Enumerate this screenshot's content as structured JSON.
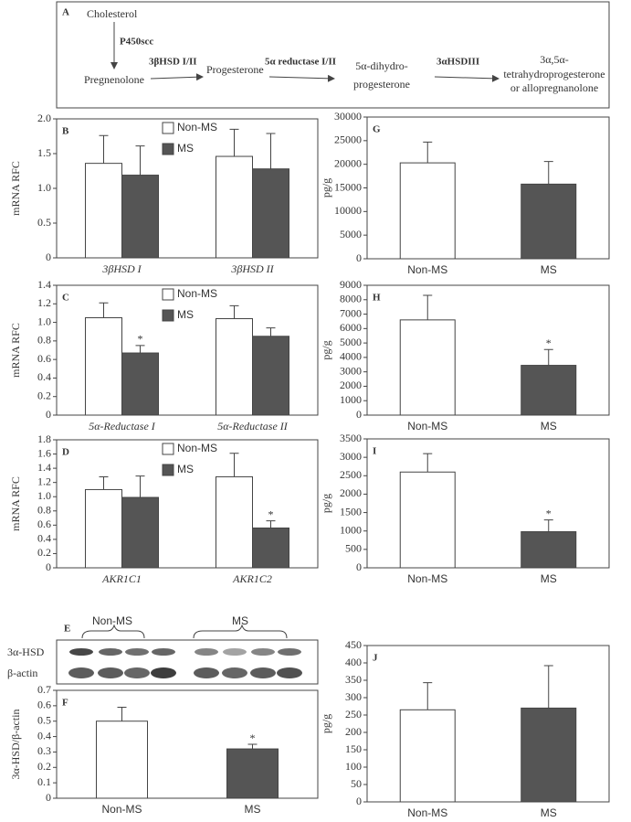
{
  "pathway": {
    "label": "A",
    "nodes": [
      [
        "Cholesterol"
      ],
      [
        "Pregnenolone"
      ],
      [
        "Progesterone"
      ],
      [
        "5α-dihydro-",
        "progesterone"
      ],
      [
        "3α,5α-",
        "tetrahydroprogesterone",
        "or allopregnanolone"
      ]
    ],
    "enzymes": [
      "P450scc",
      "3βHSD I/II",
      "5α reductase I/II",
      "3αHSDIII"
    ]
  },
  "blot": {
    "label": "E",
    "groups": [
      "Non-MS",
      "MS"
    ],
    "rows": [
      "3α-HSD",
      "β-actin"
    ]
  },
  "chart_data": [
    {
      "type": "bar",
      "label": "B",
      "ylabel": "mRNA RFC",
      "categories": [
        "3βHSD I",
        "3βHSD II"
      ],
      "series": [
        {
          "name": "Non-MS",
          "color": "#ffffff",
          "values": [
            1.36,
            1.46
          ],
          "errors": [
            0.4,
            0.39
          ]
        },
        {
          "name": "MS",
          "color": "#555555",
          "values": [
            1.19,
            1.28
          ],
          "errors": [
            0.42,
            0.51
          ]
        }
      ],
      "ylim": [
        0,
        2
      ],
      "yticks": [
        0,
        0.5,
        {
          "value": 1,
          "label": "1.0"
        },
        1.5,
        {
          "value": 2,
          "label": "2.0"
        }
      ],
      "grid": false,
      "legend": "top"
    },
    {
      "type": "bar",
      "label": "C",
      "ylabel": "mRNA RFC",
      "categories": [
        "5α-Reductase I",
        "5α-Reductase II"
      ],
      "series": [
        {
          "name": "Non-MS",
          "color": "#ffffff",
          "values": [
            1.05,
            1.04
          ],
          "errors": [
            0.16,
            0.14
          ]
        },
        {
          "name": "MS",
          "color": "#555555",
          "values": [
            0.67,
            0.85
          ],
          "errors": [
            0.08,
            0.09
          ],
          "significance": [
            "*",
            null
          ]
        }
      ],
      "ylim": [
        0,
        1.4
      ],
      "yticks": [
        0,
        0.2,
        0.4,
        0.6,
        0.8,
        {
          "value": 1,
          "label": "1.0"
        },
        1.2,
        1.4
      ],
      "grid": false,
      "legend": "top"
    },
    {
      "type": "bar",
      "label": "D",
      "ylabel": "mRNA RFC",
      "categories": [
        "AKR1C1",
        "AKR1C2"
      ],
      "series": [
        {
          "name": "Non-MS",
          "color": "#ffffff",
          "values": [
            1.1,
            1.28
          ],
          "errors": [
            0.18,
            0.33
          ]
        },
        {
          "name": "MS",
          "color": "#555555",
          "values": [
            0.99,
            0.56
          ],
          "errors": [
            0.3,
            0.1
          ],
          "significance": [
            null,
            "*"
          ]
        }
      ],
      "ylim": [
        0,
        1.8
      ],
      "yticks": [
        0,
        0.2,
        0.4,
        0.6,
        0.8,
        {
          "value": 1,
          "label": "1.0"
        },
        1.2,
        1.4,
        1.6,
        1.8
      ],
      "grid": false,
      "legend": "top"
    },
    {
      "type": "bar",
      "label": "F",
      "ylabel": "3α-HSD/β-actin",
      "categories": [
        "Non-MS",
        "MS"
      ],
      "values": [
        0.5,
        0.32
      ],
      "errors": [
        0.09,
        0.03
      ],
      "colors": [
        "#ffffff",
        "#555555"
      ],
      "significance": [
        null,
        "*"
      ],
      "ylim": [
        0,
        0.7
      ],
      "yticks": [
        0,
        0.1,
        0.2,
        0.3,
        0.4,
        0.5,
        0.6,
        0.7
      ],
      "grid": false
    },
    {
      "type": "bar",
      "label": "G",
      "ylabel": "pg/g",
      "categories": [
        "Non-MS",
        "MS"
      ],
      "values": [
        20300,
        15800
      ],
      "errors": [
        4400,
        4800
      ],
      "colors": [
        "#ffffff",
        "#555555"
      ],
      "ylim": [
        0,
        30000
      ],
      "yticks": [
        0,
        5000,
        10000,
        15000,
        20000,
        25000,
        30000
      ],
      "grid": false
    },
    {
      "type": "bar",
      "label": "H",
      "ylabel": "pg/g",
      "categories": [
        "Non-MS",
        "MS"
      ],
      "values": [
        6600,
        3450
      ],
      "errors": [
        1700,
        1100
      ],
      "colors": [
        "#ffffff",
        "#555555"
      ],
      "significance": [
        null,
        "*"
      ],
      "ylim": [
        0,
        9000
      ],
      "yticks": [
        0,
        1000,
        2000,
        3000,
        4000,
        5000,
        6000,
        7000,
        8000,
        9000
      ],
      "grid": false
    },
    {
      "type": "bar",
      "label": "I",
      "ylabel": "pg/g",
      "categories": [
        "Non-MS",
        "MS"
      ],
      "values": [
        2600,
        980
      ],
      "errors": [
        500,
        320
      ],
      "colors": [
        "#ffffff",
        "#555555"
      ],
      "significance": [
        null,
        "*"
      ],
      "ylim": [
        0,
        3500
      ],
      "yticks": [
        0,
        500,
        1000,
        1500,
        2000,
        2500,
        3000,
        3500
      ],
      "grid": false
    },
    {
      "type": "bar",
      "label": "J",
      "ylabel": "pg/g",
      "categories": [
        "Non-MS",
        "MS"
      ],
      "values": [
        265,
        270
      ],
      "errors": [
        78,
        122
      ],
      "colors": [
        "#ffffff",
        "#555555"
      ],
      "ylim": [
        0,
        450
      ],
      "yticks": [
        0,
        50,
        100,
        150,
        200,
        250,
        300,
        350,
        400,
        450
      ],
      "grid": false
    }
  ]
}
